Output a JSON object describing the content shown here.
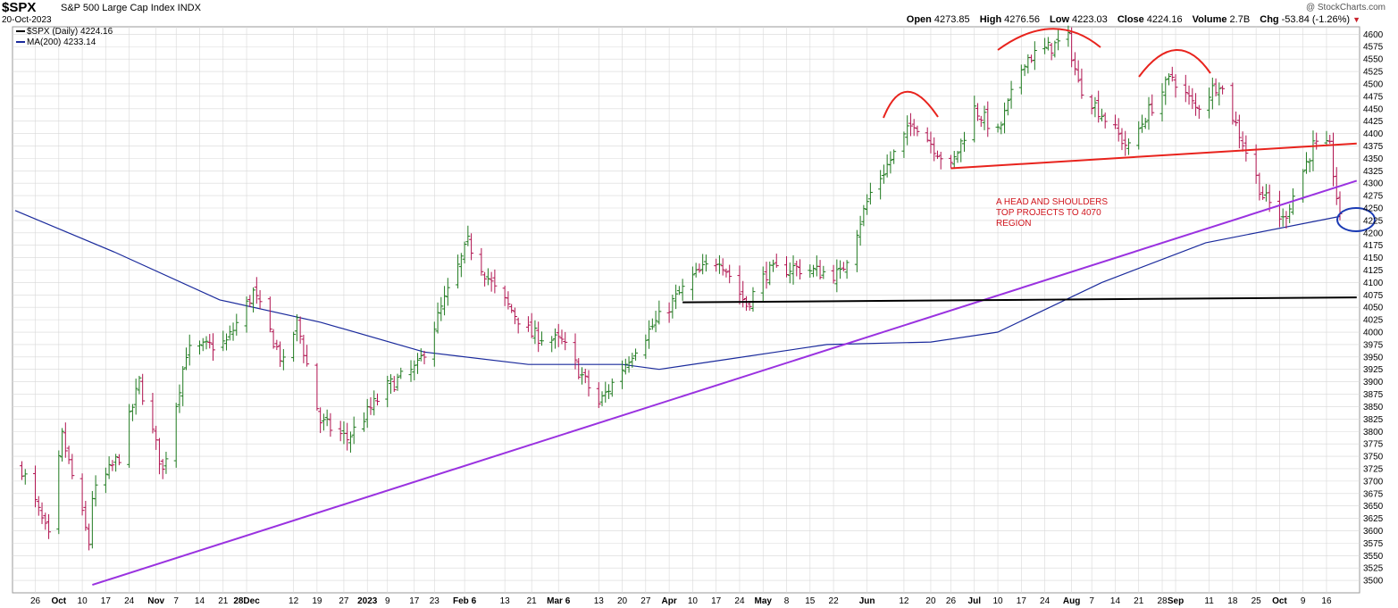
{
  "header": {
    "symbol": "$SPX",
    "name": "S&P 500 Large Cap Index INDX",
    "date": "20-Oct-2023",
    "brand": "@ StockCharts.com",
    "open_label": "Open",
    "open": "4273.85",
    "high_label": "High",
    "high": "4276.56",
    "low_label": "Low",
    "low": "4223.03",
    "close_label": "Close",
    "close": "4224.16",
    "volume_label": "Volume",
    "volume": "2.7B",
    "chg_label": "Chg",
    "chg": "-53.84 (-1.26%)"
  },
  "legend": {
    "price": "$SPX (Daily) 4224.16",
    "ma": "MA(200) 4233.14"
  },
  "annotation": [
    "A HEAD AND SHOULDERS",
    "TOP PROJECTS TO 4070",
    "REGION"
  ],
  "colors": {
    "up": "#1f7a1f",
    "down": "#b0124f",
    "ma": "#1a2a9c",
    "trend": "#9a32e0",
    "neckline": "#e8231d",
    "support": "#000000",
    "circle": "#1a3ab4",
    "grid": "#d8d8d8"
  },
  "chart_data": {
    "type": "ohlc",
    "y_range": [
      3475,
      4615
    ],
    "y_ticks": [
      3500,
      3525,
      3550,
      3575,
      3600,
      3625,
      3650,
      3675,
      3700,
      3725,
      3750,
      3775,
      3800,
      3825,
      3850,
      3875,
      3900,
      3925,
      3950,
      3975,
      4000,
      4025,
      4050,
      4075,
      4100,
      4125,
      4150,
      4175,
      4200,
      4225,
      4250,
      4275,
      4300,
      4325,
      4350,
      4375,
      4400,
      4425,
      4450,
      4475,
      4500,
      4525,
      4550,
      4575,
      4600
    ],
    "x_ticks": [
      "26",
      "Oct",
      "10",
      "17",
      "24",
      "Nov",
      "7",
      "14",
      "21",
      "28Dec",
      "12",
      "19",
      "27",
      "2023",
      "9",
      "17",
      "23",
      "Feb 6",
      "13",
      "21",
      "Mar 6",
      "13",
      "20",
      "27",
      "Apr",
      "10",
      "17",
      "24",
      "May",
      "8",
      "15",
      "22",
      "Jun",
      "12",
      "20",
      "26",
      "Jul",
      "10",
      "17",
      "24",
      "Aug",
      "7",
      "14",
      "21",
      "28",
      "Sep",
      "11",
      "18",
      "25",
      "Oct",
      "9",
      "16"
    ],
    "x_tick_bold": [
      "Oct",
      "Nov",
      "Dec",
      "2023",
      "Feb",
      "Mar",
      "Apr",
      "May",
      "Jun",
      "Jul",
      "Aug",
      "Sep"
    ],
    "close_path": [
      {
        "date": "2022-09-22",
        "close": 3725
      },
      {
        "date": "2022-09-30",
        "close": 3585
      },
      {
        "date": "2022-10-04",
        "close": 3790
      },
      {
        "date": "2022-10-12",
        "close": 3575
      },
      {
        "date": "2022-10-13",
        "close": 3670
      },
      {
        "date": "2022-10-21",
        "close": 3750
      },
      {
        "date": "2022-10-27",
        "close": 3900
      },
      {
        "date": "2022-11-03",
        "close": 3720
      },
      {
        "date": "2022-11-10",
        "close": 3960
      },
      {
        "date": "2022-11-22",
        "close": 3980
      },
      {
        "date": "2022-11-30",
        "close": 4080
      },
      {
        "date": "2022-12-09",
        "close": 3935
      },
      {
        "date": "2022-12-13",
        "close": 4020
      },
      {
        "date": "2022-12-20",
        "close": 3820
      },
      {
        "date": "2022-12-28",
        "close": 3785
      },
      {
        "date": "2023-01-09",
        "close": 3890
      },
      {
        "date": "2023-01-18",
        "close": 3930
      },
      {
        "date": "2023-02-02",
        "close": 4180
      },
      {
        "date": "2023-02-10",
        "close": 4085
      },
      {
        "date": "2023-02-21",
        "close": 3995
      },
      {
        "date": "2023-03-02",
        "close": 3980
      },
      {
        "date": "2023-03-13",
        "close": 3855
      },
      {
        "date": "2023-03-24",
        "close": 3970
      },
      {
        "date": "2023-04-10",
        "close": 4110
      },
      {
        "date": "2023-04-18",
        "close": 4150
      },
      {
        "date": "2023-04-26",
        "close": 4055
      },
      {
        "date": "2023-05-02",
        "close": 4120
      },
      {
        "date": "2023-05-10",
        "close": 4130
      },
      {
        "date": "2023-05-24",
        "close": 4115
      },
      {
        "date": "2023-06-02",
        "close": 4280
      },
      {
        "date": "2023-06-15",
        "close": 4425
      },
      {
        "date": "2023-06-26",
        "close": 4330
      },
      {
        "date": "2023-07-03",
        "close": 4450
      },
      {
        "date": "2023-07-10",
        "close": 4400
      },
      {
        "date": "2023-07-18",
        "close": 4550
      },
      {
        "date": "2023-07-31",
        "close": 4590
      },
      {
        "date": "2023-08-03",
        "close": 4500
      },
      {
        "date": "2023-08-18",
        "close": 4370
      },
      {
        "date": "2023-08-23",
        "close": 4435
      },
      {
        "date": "2023-08-31",
        "close": 4515
      },
      {
        "date": "2023-09-07",
        "close": 4450
      },
      {
        "date": "2023-09-14",
        "close": 4505
      },
      {
        "date": "2023-09-20",
        "close": 4400
      },
      {
        "date": "2023-09-27",
        "close": 4275
      },
      {
        "date": "2023-10-03",
        "close": 4225
      },
      {
        "date": "2023-10-12",
        "close": 4375
      },
      {
        "date": "2023-10-17",
        "close": 4370
      },
      {
        "date": "2023-10-20",
        "close": 4224
      }
    ],
    "ma200": [
      {
        "date": "2022-09-20",
        "value": 4245
      },
      {
        "date": "2022-10-20",
        "value": 4160
      },
      {
        "date": "2022-11-20",
        "value": 4065
      },
      {
        "date": "2022-12-20",
        "value": 4020
      },
      {
        "date": "2023-01-20",
        "value": 3960
      },
      {
        "date": "2023-02-20",
        "value": 3935
      },
      {
        "date": "2023-03-20",
        "value": 3935
      },
      {
        "date": "2023-03-31",
        "value": 3925
      },
      {
        "date": "2023-04-20",
        "value": 3945
      },
      {
        "date": "2023-05-20",
        "value": 3975
      },
      {
        "date": "2023-06-20",
        "value": 3980
      },
      {
        "date": "2023-07-10",
        "value": 4000
      },
      {
        "date": "2023-08-10",
        "value": 4100
      },
      {
        "date": "2023-09-10",
        "value": 4180
      },
      {
        "date": "2023-10-20",
        "value": 4233
      }
    ],
    "lines": [
      {
        "name": "trend",
        "from": {
          "date": "2022-10-13",
          "value": 3491
        },
        "to": {
          "date": "2023-10-25",
          "value": 4305
        }
      },
      {
        "name": "neckline",
        "from": {
          "date": "2023-06-26",
          "value": 4330
        },
        "to": {
          "date": "2023-10-25",
          "value": 4380
        }
      },
      {
        "name": "support",
        "from": {
          "date": "2023-04-07",
          "value": 4060
        },
        "to": {
          "date": "2023-10-25",
          "value": 4070
        }
      }
    ]
  }
}
